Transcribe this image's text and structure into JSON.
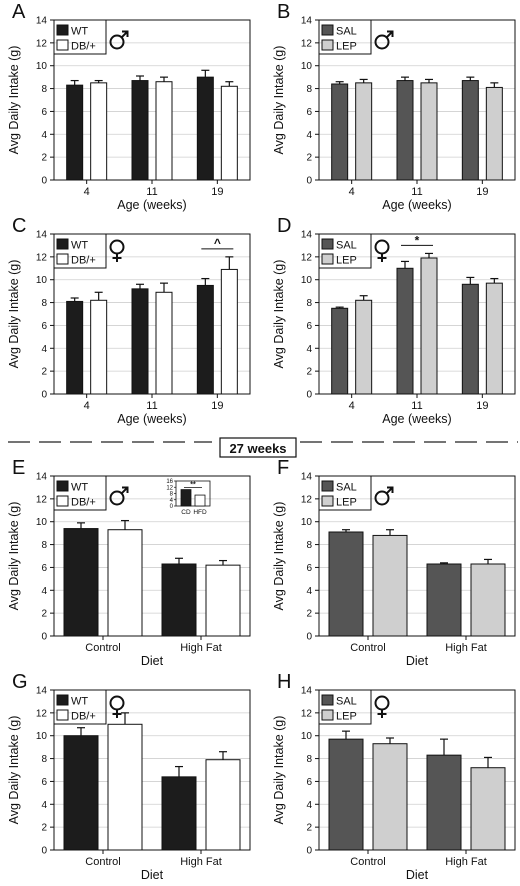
{
  "divider_label": "27 weeks",
  "colors": {
    "wt": "#1c1c1c",
    "db": "#ffffff",
    "sal": "#555555",
    "lep": "#cfcfcf",
    "edge": "#111111"
  },
  "chart_data": [
    {
      "panel": "A",
      "type": "bar",
      "sex": "male",
      "categories": [
        "4",
        "11",
        "19"
      ],
      "xlabel": "Age (weeks)",
      "ylabel": "Avg Daily Intake (g)",
      "ylim": [
        0,
        14
      ],
      "series": [
        {
          "name": "WT",
          "color": "#1c1c1c",
          "values": [
            8.3,
            8.7,
            9.0
          ],
          "errors": [
            0.4,
            0.4,
            0.6
          ]
        },
        {
          "name": "DB/+",
          "color": "#ffffff",
          "values": [
            8.5,
            8.6,
            8.2
          ],
          "errors": [
            0.2,
            0.4,
            0.4
          ]
        }
      ]
    },
    {
      "panel": "B",
      "type": "bar",
      "sex": "male",
      "categories": [
        "4",
        "11",
        "19"
      ],
      "xlabel": "Age (weeks)",
      "ylabel": "Avg Daily Intake (g)",
      "ylim": [
        0,
        14
      ],
      "series": [
        {
          "name": "SAL",
          "color": "#555555",
          "values": [
            8.4,
            8.7,
            8.7
          ],
          "errors": [
            0.2,
            0.3,
            0.3
          ]
        },
        {
          "name": "LEP",
          "color": "#cfcfcf",
          "values": [
            8.5,
            8.5,
            8.1
          ],
          "errors": [
            0.3,
            0.3,
            0.4
          ]
        }
      ]
    },
    {
      "panel": "C",
      "type": "bar",
      "sex": "female",
      "categories": [
        "4",
        "11",
        "19"
      ],
      "xlabel": "Age (weeks)",
      "ylabel": "Avg Daily Intake (g)",
      "ylim": [
        0,
        14
      ],
      "series": [
        {
          "name": "WT",
          "color": "#1c1c1c",
          "values": [
            8.1,
            9.2,
            9.5
          ],
          "errors": [
            0.3,
            0.4,
            0.6
          ]
        },
        {
          "name": "DB/+",
          "color": "#ffffff",
          "values": [
            8.2,
            8.9,
            10.9
          ],
          "errors": [
            0.7,
            0.8,
            1.1
          ]
        }
      ],
      "annotation": {
        "text": "^",
        "between": [
          2,
          2
        ]
      }
    },
    {
      "panel": "D",
      "type": "bar",
      "sex": "female",
      "categories": [
        "4",
        "11",
        "19"
      ],
      "xlabel": "Age (weeks)",
      "ylabel": "Avg Daily Intake (g)",
      "ylim": [
        0,
        14
      ],
      "series": [
        {
          "name": "SAL",
          "color": "#555555",
          "values": [
            7.5,
            11.0,
            9.6
          ],
          "errors": [
            0.1,
            0.6,
            0.6
          ]
        },
        {
          "name": "LEP",
          "color": "#cfcfcf",
          "values": [
            8.2,
            11.9,
            9.7
          ],
          "errors": [
            0.4,
            0.4,
            0.4
          ]
        }
      ],
      "annotation": {
        "text": "*",
        "between": [
          1,
          1
        ]
      }
    },
    {
      "panel": "E",
      "type": "bar",
      "sex": "male",
      "categories": [
        "Control",
        "High Fat"
      ],
      "xlabel": "Diet",
      "ylabel": "Avg Daily Intake (g)",
      "ylim": [
        0,
        14
      ],
      "series": [
        {
          "name": "WT",
          "color": "#1c1c1c",
          "values": [
            9.4,
            6.3
          ],
          "errors": [
            0.5,
            0.5
          ]
        },
        {
          "name": "DB/+",
          "color": "#ffffff",
          "values": [
            9.3,
            6.2
          ],
          "errors": [
            0.8,
            0.4
          ]
        }
      ],
      "inset": {
        "type": "bar",
        "categories": [
          "CD",
          "HFD"
        ],
        "values": [
          10.5,
          7.0
        ],
        "colors": [
          "#1c1c1c",
          "#ffffff"
        ],
        "ylim": [
          0,
          16
        ],
        "yticks": [
          0,
          4,
          8,
          12,
          16
        ],
        "annotation": "**"
      }
    },
    {
      "panel": "F",
      "type": "bar",
      "sex": "male",
      "categories": [
        "Control",
        "High Fat"
      ],
      "xlabel": "Diet",
      "ylabel": "Avg Daily Intake (g)",
      "ylim": [
        0,
        14
      ],
      "series": [
        {
          "name": "SAL",
          "color": "#555555",
          "values": [
            9.1,
            6.3
          ],
          "errors": [
            0.2,
            0.1
          ]
        },
        {
          "name": "LEP",
          "color": "#cfcfcf",
          "values": [
            8.8,
            6.3
          ],
          "errors": [
            0.5,
            0.4
          ]
        }
      ]
    },
    {
      "panel": "G",
      "type": "bar",
      "sex": "female",
      "categories": [
        "Control",
        "High Fat"
      ],
      "xlabel": "Diet",
      "ylabel": "Avg Daily Intake (g)",
      "ylim": [
        0,
        14
      ],
      "series": [
        {
          "name": "WT",
          "color": "#1c1c1c",
          "values": [
            10.0,
            6.4
          ],
          "errors": [
            0.7,
            0.9
          ]
        },
        {
          "name": "DB/+",
          "color": "#ffffff",
          "values": [
            11.0,
            7.9
          ],
          "errors": [
            1.0,
            0.7
          ]
        }
      ]
    },
    {
      "panel": "H",
      "type": "bar",
      "sex": "female",
      "categories": [
        "Control",
        "High Fat"
      ],
      "xlabel": "Diet",
      "ylabel": "Avg Daily Intake (g)",
      "ylim": [
        0,
        14
      ],
      "series": [
        {
          "name": "SAL",
          "color": "#555555",
          "values": [
            9.7,
            8.3
          ],
          "errors": [
            0.7,
            1.4
          ]
        },
        {
          "name": "LEP",
          "color": "#cfcfcf",
          "values": [
            9.3,
            7.2
          ],
          "errors": [
            0.5,
            0.9
          ]
        }
      ]
    }
  ]
}
